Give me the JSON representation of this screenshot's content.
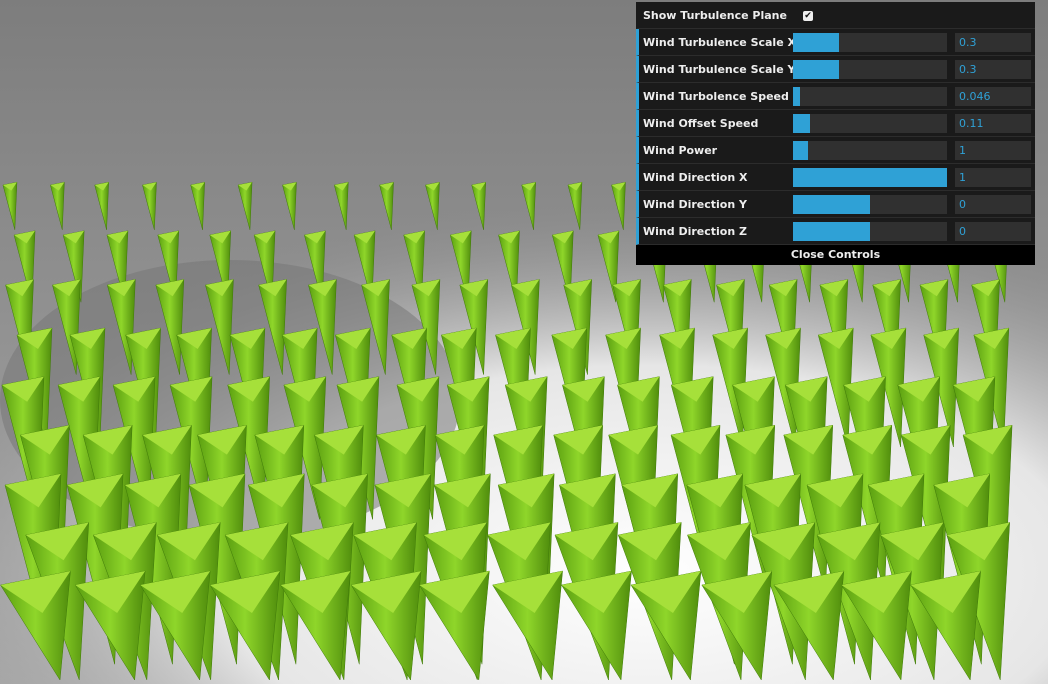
{
  "gui": {
    "show_turbulence_plane": {
      "label": "Show Turbulence Plane",
      "checked": true
    },
    "sliders": [
      {
        "label": "Wind Turbulence Scale X",
        "value": "0.3",
        "fill": 0.3
      },
      {
        "label": "Wind Turbulence Scale Y",
        "value": "0.3",
        "fill": 0.3
      },
      {
        "label": "Wind Turbolence Speed",
        "value": "0.046",
        "fill": 0.046
      },
      {
        "label": "Wind Offset Speed",
        "value": "0.11",
        "fill": 0.11
      },
      {
        "label": "Wind Power",
        "value": "1",
        "fill": 0.1
      },
      {
        "label": "Wind Direction X",
        "value": "1",
        "fill": 1.0
      },
      {
        "label": "Wind Direction Y",
        "value": "0",
        "fill": 0.5
      },
      {
        "label": "Wind Direction Z",
        "value": "0",
        "fill": 0.5
      }
    ],
    "close_label": "Close Controls"
  },
  "colors": {
    "accent": "#2fa1d6",
    "panel": "#1a1a1a",
    "grass": "#7ccc1a"
  }
}
